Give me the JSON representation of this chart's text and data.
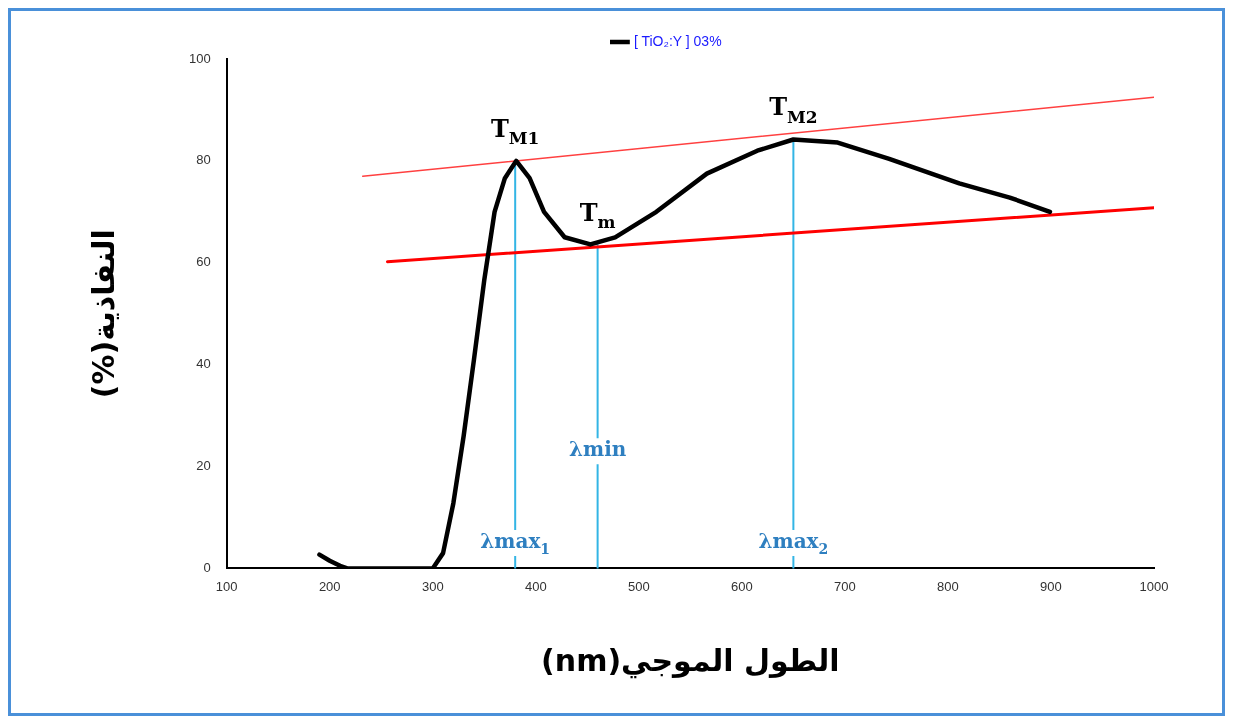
{
  "chart_data": {
    "type": "line",
    "xlabel": "الطول الموجي(nm)",
    "ylabel": "النفاذية(%)",
    "xlim": [
      100,
      1000
    ],
    "ylim": [
      0,
      100
    ],
    "xticks": [
      100,
      200,
      300,
      400,
      500,
      600,
      700,
      800,
      900,
      1000
    ],
    "yticks": [
      0,
      20,
      40,
      60,
      80,
      100
    ],
    "grid": false,
    "legend": "top",
    "marker": "none",
    "line_style": "solid",
    "series": [
      {
        "name": "[ TiO₂:Y ] 03%",
        "color": "#000000",
        "x": [
          190,
          200,
          210,
          217,
          230,
          260,
          300,
          310,
          320,
          330,
          340,
          350,
          360,
          370,
          381,
          394,
          408,
          428,
          453,
          477,
          517,
          566,
          615,
          650,
          693,
          743,
          811,
          860,
          899
        ],
        "values": [
          2.7,
          1.5,
          0.5,
          0,
          0,
          0,
          0,
          3,
          12.8,
          26,
          41,
          56.6,
          70,
          76.6,
          80,
          76.6,
          70,
          65,
          63.6,
          65,
          70,
          77.5,
          82,
          84.2,
          83.6,
          80.4,
          75.6,
          72.8,
          70
        ]
      },
      {
        "color": "#ff4040",
        "x": [
          232,
          1000
        ],
        "values": [
          77,
          92.5
        ]
      },
      {
        "color": "#ff0000",
        "x": [
          256,
          1000
        ],
        "values": [
          60.2,
          70.8
        ]
      },
      {
        "color": "#33b5e5",
        "x": [
          380,
          380
        ],
        "values": [
          0,
          80
        ]
      },
      {
        "color": "#33b5e5",
        "x": [
          460,
          460
        ],
        "values": [
          0,
          63.5
        ]
      },
      {
        "color": "#33b5e5",
        "x": [
          650,
          650
        ],
        "values": [
          0,
          84.2
        ]
      }
    ],
    "annotations": [
      {
        "text": "T$_{M1}$",
        "x": 380,
        "y": 80
      },
      {
        "text": "T$_{m}$",
        "x": 460,
        "y": 63.5
      },
      {
        "text": "T$_{M2}$",
        "x": 650,
        "y": 84.2
      },
      {
        "text": "λmax$_{1}$",
        "x": 380,
        "y": 4
      },
      {
        "text": "λmin",
        "x": 460,
        "y": 22
      },
      {
        "text": "λmax$_{2}$",
        "x": 650,
        "y": 4
      }
    ]
  }
}
